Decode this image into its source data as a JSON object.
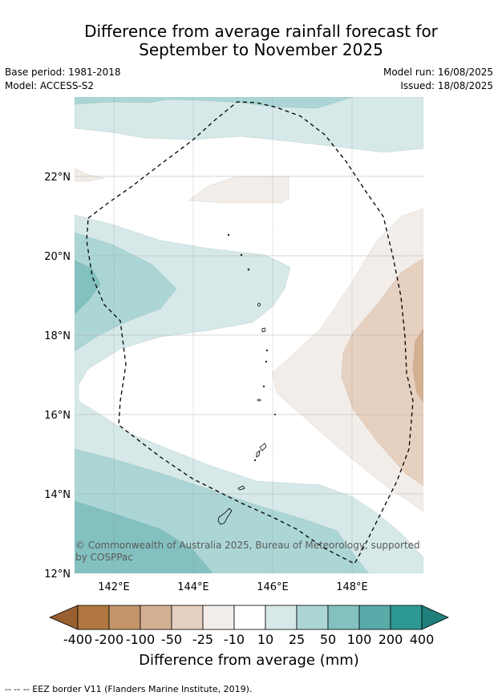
{
  "title": {
    "line1": "Difference from average rainfall forecast for",
    "line2": "September to November 2025"
  },
  "meta": {
    "base_period": "Base period: 1981-2018",
    "model": "Model: ACCESS-S2",
    "model_run": "Model run: 16/08/2025",
    "issued": "Issued: 18/08/2025"
  },
  "map": {
    "lat_labels": [
      "22°N",
      "20°N",
      "18°N",
      "16°N",
      "14°N",
      "12°N"
    ],
    "lon_labels": [
      "142°E",
      "144°E",
      "146°E",
      "148°E"
    ],
    "copyright_line1": "© Commonwealth of Australia 2025, Bureau of Meteorology, supported",
    "copyright_line2": "by COSPPac"
  },
  "colorbar": {
    "ticks": [
      "-400",
      "-200",
      "-100",
      "-50",
      "-25",
      "-10",
      "10",
      "25",
      "50",
      "100",
      "200",
      "400"
    ],
    "colors": [
      "#b07840",
      "#c29468",
      "#d4b092",
      "#e6d0c0",
      "#f2ede8",
      "#ffffff",
      "#d6e9e8",
      "#abd6d5",
      "#82c1bf",
      "#58aba9",
      "#2e9893"
    ],
    "extend_low_color": "#986030",
    "extend_high_color": "#1f7f7a",
    "label": "Difference from average (mm)"
  },
  "footnote": "--  --  -- EEZ border V11 (Flanders Marine Institute, 2019)."
}
